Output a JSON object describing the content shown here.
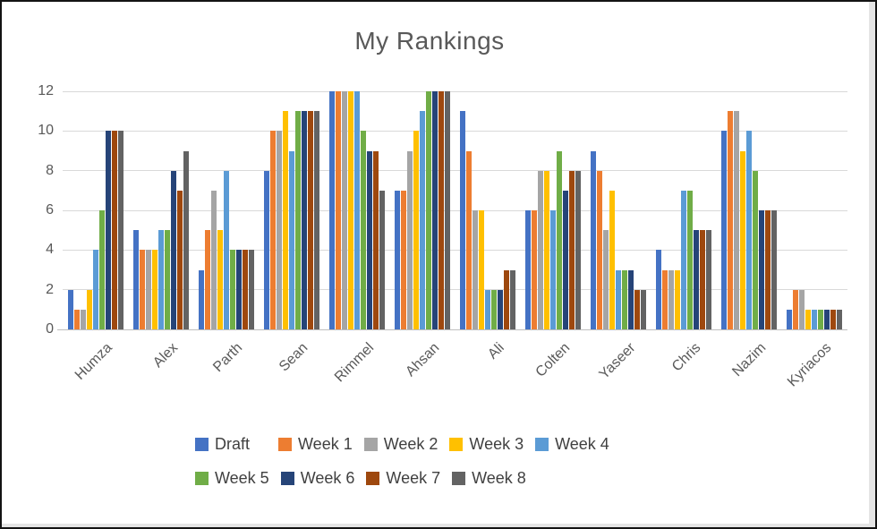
{
  "window": {
    "background": "#ffffff",
    "border_color": "#131313"
  },
  "chart_data": {
    "type": "bar",
    "title": "My Rankings",
    "xlabel": "",
    "ylabel": "",
    "ylim": [
      0,
      12
    ],
    "yticks": [
      0,
      2,
      4,
      6,
      8,
      10,
      12
    ],
    "grid": true,
    "legend_position": "bottom",
    "legend_rows": [
      5,
      4
    ],
    "title_color": "#595959",
    "axis_text_color": "#595959",
    "legend_text_color": "#404040",
    "gridline_color": "#d9d9d9",
    "categories": [
      "Humza",
      "Alex",
      "Parth",
      "Sean",
      "Rimmel",
      "Ahsan",
      "Ali",
      "Colten",
      "Yaseer",
      "Chris",
      "Nazim",
      "Kyriacos"
    ],
    "series": [
      {
        "name": "Draft",
        "color": "#4472C4",
        "values": [
          2,
          5,
          3,
          8,
          12,
          7,
          11,
          6,
          9,
          4,
          10,
          1
        ]
      },
      {
        "name": "Week 1",
        "color": "#ED7D31",
        "values": [
          1,
          4,
          5,
          10,
          12,
          7,
          9,
          6,
          8,
          3,
          11,
          2
        ]
      },
      {
        "name": "Week 2",
        "color": "#A5A5A5",
        "values": [
          1,
          4,
          7,
          10,
          12,
          9,
          6,
          8,
          5,
          3,
          11,
          2
        ]
      },
      {
        "name": "Week 3",
        "color": "#FFC000",
        "values": [
          2,
          4,
          5,
          11,
          12,
          10,
          6,
          8,
          7,
          3,
          9,
          1
        ]
      },
      {
        "name": "Week 4",
        "color": "#5B9BD5",
        "values": [
          4,
          5,
          8,
          9,
          12,
          11,
          2,
          6,
          3,
          7,
          10,
          1
        ]
      },
      {
        "name": "Week 5",
        "color": "#70AD47",
        "values": [
          6,
          5,
          4,
          11,
          10,
          12,
          2,
          9,
          3,
          7,
          8,
          1
        ]
      },
      {
        "name": "Week 6",
        "color": "#264478",
        "values": [
          10,
          8,
          4,
          11,
          9,
          12,
          2,
          7,
          3,
          5,
          6,
          1
        ]
      },
      {
        "name": "Week 7",
        "color": "#9E480E",
        "values": [
          10,
          7,
          4,
          11,
          9,
          12,
          3,
          8,
          2,
          5,
          6,
          1
        ]
      },
      {
        "name": "Week 8",
        "color": "#636363",
        "values": [
          10,
          9,
          4,
          11,
          7,
          12,
          3,
          8,
          2,
          5,
          6,
          1
        ]
      }
    ]
  }
}
